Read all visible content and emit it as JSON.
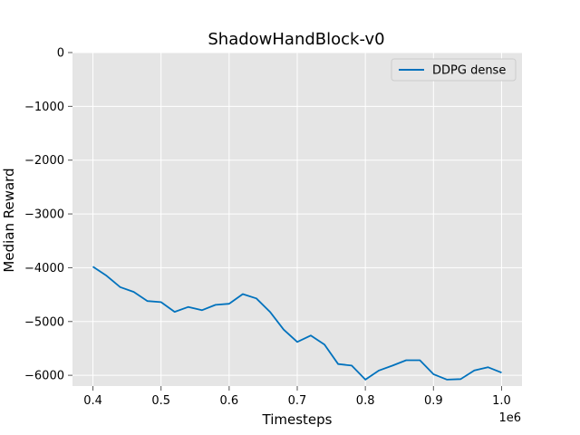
{
  "chart_data": {
    "type": "line",
    "title": "ShadowHandBlock-v0",
    "xlabel": "Timesteps",
    "ylabel": "Median Reward",
    "x_offset_label": "1e6",
    "xlim": [
      0.37,
      1.03
    ],
    "ylim": [
      -6200,
      0
    ],
    "x_ticks": [
      0.4,
      0.5,
      0.6,
      0.7,
      0.8,
      0.9,
      1.0
    ],
    "x_tick_labels": [
      "0.4",
      "0.5",
      "0.6",
      "0.7",
      "0.8",
      "0.9",
      "1.0"
    ],
    "y_ticks": [
      0,
      -1000,
      -2000,
      -3000,
      -4000,
      -5000,
      -6000
    ],
    "y_tick_labels": [
      "0",
      "−1000",
      "−2000",
      "−3000",
      "−4000",
      "−5000",
      "−6000"
    ],
    "grid": true,
    "legend_position": "top-right",
    "background_color": "#e5e5e5",
    "series": [
      {
        "name": "DDPG dense",
        "color": "#0072bd",
        "x": [
          0.4,
          0.42,
          0.44,
          0.46,
          0.48,
          0.5,
          0.52,
          0.54,
          0.56,
          0.58,
          0.6,
          0.62,
          0.64,
          0.66,
          0.68,
          0.7,
          0.72,
          0.74,
          0.76,
          0.78,
          0.8,
          0.82,
          0.84,
          0.86,
          0.88,
          0.9,
          0.92,
          0.94,
          0.96,
          0.98,
          1.0
        ],
        "y": [
          -3980,
          -4150,
          -4360,
          -4450,
          -4620,
          -4640,
          -4820,
          -4730,
          -4790,
          -4690,
          -4670,
          -4490,
          -4570,
          -4820,
          -5150,
          -5380,
          -5260,
          -5430,
          -5790,
          -5820,
          -6080,
          -5910,
          -5820,
          -5720,
          -5720,
          -5980,
          -6080,
          -6070,
          -5910,
          -5850,
          -5950
        ]
      }
    ]
  }
}
